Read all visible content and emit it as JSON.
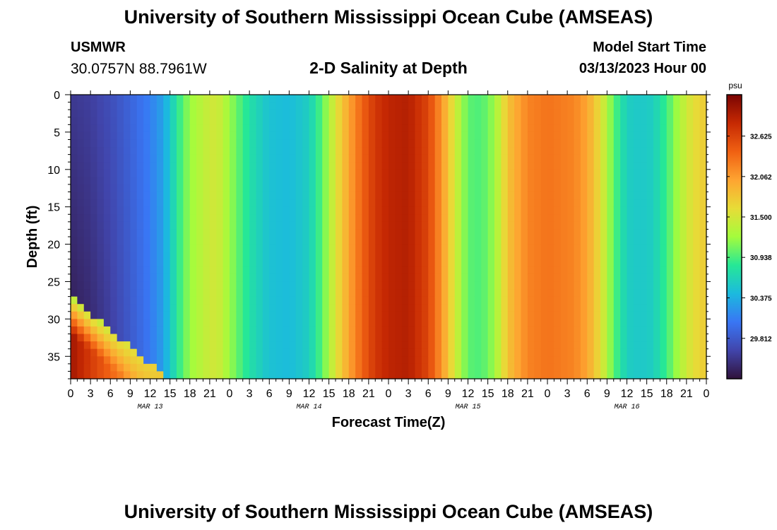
{
  "header": {
    "title": "University of Southern Mississippi Ocean Cube (AMSEAS)",
    "station": "USMWR",
    "coords": "30.0757N  88.7961W",
    "subtitle": "2-D Salinity at Depth",
    "start_label": "Model Start Time",
    "start_value": "03/13/2023 Hour 00"
  },
  "footer": {
    "title": "University of Southern Mississippi Ocean Cube (AMSEAS)"
  },
  "chart_data": {
    "type": "heatmap",
    "title": "2-D Salinity at Depth",
    "xlabel": "Forecast Time(Z)",
    "ylabel": "Depth (ft)",
    "x_unit": "hours since 03/13/2023 00Z",
    "xlim": [
      0,
      96
    ],
    "ylim": [
      0,
      38
    ],
    "x_ticks": [
      0,
      3,
      6,
      9,
      12,
      15,
      18,
      21,
      24,
      27,
      30,
      33,
      36,
      39,
      42,
      45,
      48,
      51,
      54,
      57,
      60,
      63,
      66,
      69,
      72,
      75,
      78,
      81,
      84,
      87,
      90,
      93,
      96
    ],
    "x_tick_labels": [
      "0",
      "3",
      "6",
      "9",
      "12",
      "15",
      "18",
      "21",
      "0",
      "3",
      "6",
      "9",
      "12",
      "15",
      "18",
      "21",
      "0",
      "3",
      "6",
      "9",
      "12",
      "15",
      "18",
      "21",
      "0",
      "3",
      "6",
      "9",
      "12",
      "15",
      "18",
      "21",
      "0"
    ],
    "y_ticks": [
      0,
      5,
      10,
      15,
      20,
      25,
      30,
      35
    ],
    "y_tick_labels": [
      "0",
      "5",
      "10",
      "15",
      "20",
      "25",
      "30",
      "35"
    ],
    "day_labels": [
      {
        "label": "MAR 13",
        "hour": 12
      },
      {
        "label": "MAR 14",
        "hour": 36
      },
      {
        "label": "MAR 15",
        "hour": 60
      },
      {
        "label": "MAR 16",
        "hour": 84
      }
    ],
    "colorbar": {
      "unit": "psu",
      "min": 29.25,
      "max": 33.2,
      "ticks": [
        32.625,
        32.062,
        31.5,
        30.938,
        30.375,
        29.812
      ],
      "tick_labels": [
        "32.625",
        "32.062",
        "31.500",
        "30.938",
        "30.375",
        "29.812"
      ]
    },
    "surface_salinity_by_hour": {
      "hours": [
        0,
        3,
        6,
        9,
        12,
        14,
        15,
        16.5,
        18,
        21,
        22,
        24,
        27,
        30,
        33,
        36,
        38,
        40,
        42,
        44,
        46,
        48,
        51,
        54,
        56,
        58,
        60,
        62,
        64,
        66,
        69,
        72,
        74,
        76,
        78,
        80,
        82,
        84,
        86,
        88,
        90,
        92,
        94,
        96
      ],
      "values": [
        29.55,
        29.6,
        29.72,
        29.9,
        30.1,
        30.3,
        30.55,
        30.9,
        31.2,
        31.45,
        31.5,
        31.2,
        30.75,
        30.5,
        30.45,
        30.6,
        31.0,
        31.55,
        32.0,
        32.4,
        32.7,
        32.85,
        32.9,
        32.6,
        32.1,
        31.5,
        31.0,
        30.95,
        31.2,
        31.8,
        32.2,
        32.3,
        32.25,
        32.2,
        32.0,
        31.6,
        31.0,
        30.6,
        30.55,
        30.6,
        30.9,
        31.3,
        31.6,
        31.75
      ]
    },
    "bottom_intrusion": {
      "description_hours": [
        0,
        15
      ],
      "max_salinity": 33.0,
      "bottom_depth": 38
    }
  }
}
